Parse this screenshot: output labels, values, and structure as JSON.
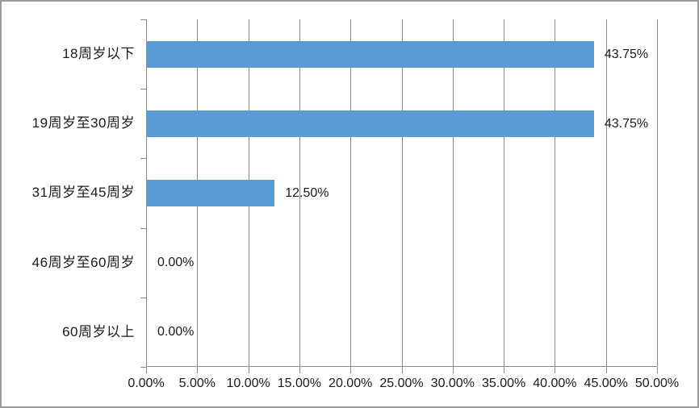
{
  "chart_data": {
    "type": "bar",
    "orientation": "horizontal",
    "title": "",
    "xlabel": "",
    "ylabel": "",
    "categories": [
      "18周岁以下",
      "19周岁至30周岁",
      "31周岁至45周岁",
      "46周岁至60周岁",
      "60周岁以上"
    ],
    "values": [
      43.75,
      43.75,
      12.5,
      0,
      0
    ],
    "value_labels": [
      "43.75%",
      "43.75%",
      "12.50%",
      "0.00%",
      "0.00%"
    ],
    "x_tick_labels": [
      "0.00%",
      "5.00%",
      "10.00%",
      "15.00%",
      "20.00%",
      "25.00%",
      "30.00%",
      "35.00%",
      "40.00%",
      "45.00%",
      "50.00%"
    ],
    "xlim": [
      0,
      50
    ],
    "x_tick_step": 5,
    "grid": "vertical-major",
    "legend": "none",
    "data_label_position": "outside-end",
    "colors": {
      "bar": "#5B9BD5",
      "gridline": "#8C8C8C",
      "axis": "#8C8C8C",
      "text": "#1A1A1A",
      "background": "#FFFFFF",
      "frame_border": "#9B9B9B"
    }
  }
}
